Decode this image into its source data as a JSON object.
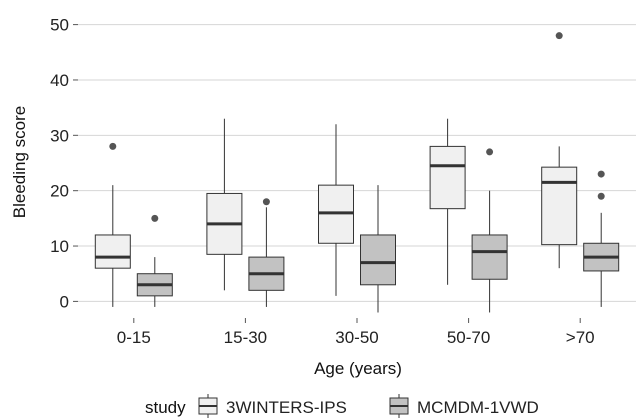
{
  "chart_data": {
    "type": "boxplot",
    "xlabel": "Age (years)",
    "ylabel": "Bleeding score",
    "categories": [
      "0-15",
      "15-30",
      "30-50",
      "50-70",
      ">70"
    ],
    "ylim": [
      -3,
      53
    ],
    "yticks": [
      0,
      10,
      20,
      30,
      40,
      50
    ],
    "grid": true,
    "legend": {
      "title": "study",
      "position": "bottom"
    },
    "series": [
      {
        "name": "3WINTERS-IPS",
        "color": "#f0f0f0",
        "boxes": [
          {
            "whisker_low": -1,
            "q1": 6,
            "median": 8,
            "q3": 12,
            "whisker_high": 21,
            "outliers": [
              28
            ]
          },
          {
            "whisker_low": 2,
            "q1": 8.5,
            "median": 14,
            "q3": 19.5,
            "whisker_high": 33,
            "outliers": []
          },
          {
            "whisker_low": 1,
            "q1": 10.5,
            "median": 16,
            "q3": 21,
            "whisker_high": 32,
            "outliers": []
          },
          {
            "whisker_low": 3,
            "q1": 16.75,
            "median": 24.5,
            "q3": 28,
            "whisker_high": 33,
            "outliers": []
          },
          {
            "whisker_low": 6,
            "q1": 10.25,
            "median": 21.5,
            "q3": 24.25,
            "whisker_high": 28,
            "outliers": [
              48
            ]
          }
        ]
      },
      {
        "name": "MCMDM-1VWD",
        "color": "#c2c2c2",
        "boxes": [
          {
            "whisker_low": -1,
            "q1": 1,
            "median": 3,
            "q3": 5,
            "whisker_high": 8,
            "outliers": [
              15
            ]
          },
          {
            "whisker_low": -1,
            "q1": 2,
            "median": 5,
            "q3": 8,
            "whisker_high": 17,
            "outliers": [
              18
            ]
          },
          {
            "whisker_low": -2,
            "q1": 3,
            "median": 7,
            "q3": 12,
            "whisker_high": 21,
            "outliers": []
          },
          {
            "whisker_low": -2,
            "q1": 4,
            "median": 9,
            "q3": 12,
            "whisker_high": 20,
            "outliers": [
              27
            ]
          },
          {
            "whisker_low": -1,
            "q1": 5.5,
            "median": 8,
            "q3": 10.5,
            "whisker_high": 16,
            "outliers": [
              19,
              23
            ]
          }
        ]
      }
    ]
  }
}
